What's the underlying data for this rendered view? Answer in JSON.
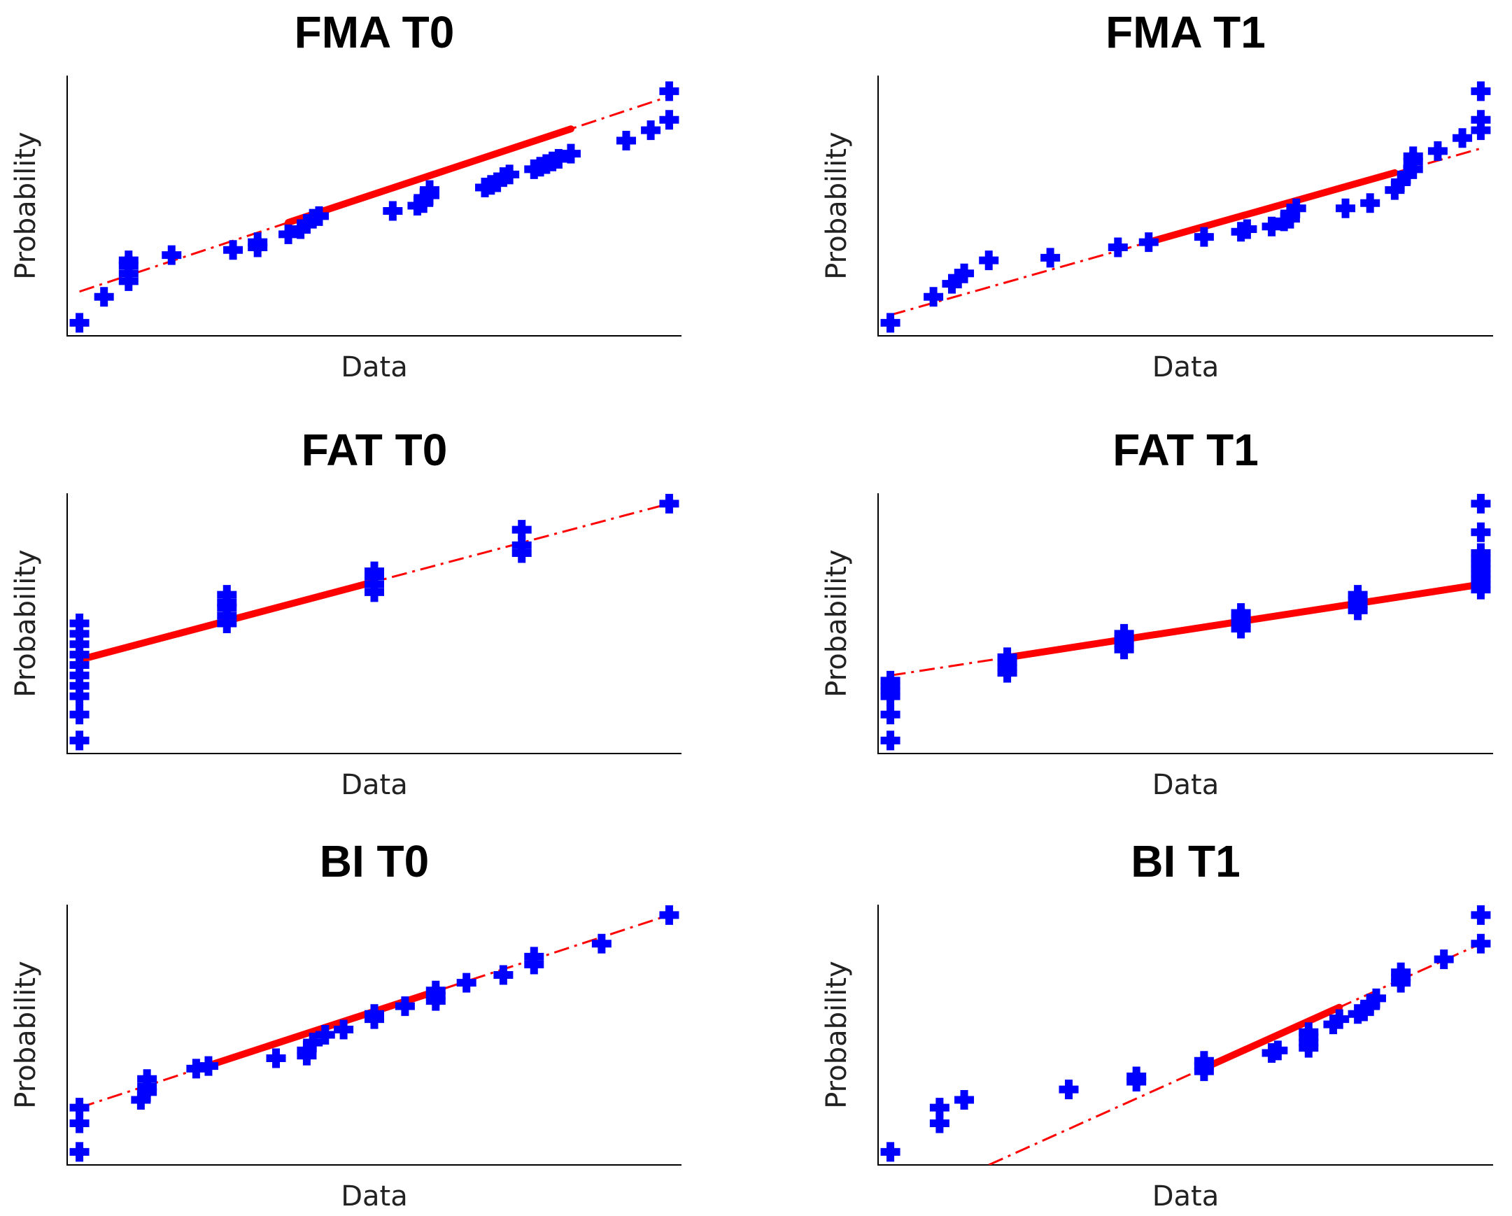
{
  "chart_data": [
    {
      "type": "scatter",
      "title": "FMA T0",
      "xlabel": "Data",
      "ylabel": "Probability",
      "xlim": [
        0,
        100
      ],
      "ylim": [
        0,
        100
      ],
      "points": [
        [
          2,
          5
        ],
        [
          6,
          15
        ],
        [
          10,
          21
        ],
        [
          10,
          24
        ],
        [
          10,
          27
        ],
        [
          10,
          29
        ],
        [
          17,
          31
        ],
        [
          27,
          33
        ],
        [
          31,
          34
        ],
        [
          31,
          36
        ],
        [
          36,
          39
        ],
        [
          38,
          41
        ],
        [
          39,
          43
        ],
        [
          40,
          45
        ],
        [
          41,
          46
        ],
        [
          53,
          48
        ],
        [
          57,
          50
        ],
        [
          58,
          51
        ],
        [
          58,
          53
        ],
        [
          59,
          54
        ],
        [
          59,
          56
        ],
        [
          68,
          57
        ],
        [
          69,
          58
        ],
        [
          70,
          59
        ],
        [
          71,
          61
        ],
        [
          72,
          62
        ],
        [
          76,
          64
        ],
        [
          77,
          65
        ],
        [
          78,
          66
        ],
        [
          79,
          67
        ],
        [
          80,
          68
        ],
        [
          82,
          70
        ],
        [
          91,
          75
        ],
        [
          95,
          79
        ],
        [
          98,
          83
        ],
        [
          98,
          94
        ]
      ],
      "fit_line": [
        [
          2,
          17
        ],
        [
          98,
          92
        ]
      ],
      "fit_solid_range": [
        36,
        82
      ]
    },
    {
      "type": "scatter",
      "title": "FMA T1",
      "xlabel": "Data",
      "ylabel": "Probability",
      "xlim": [
        0,
        100
      ],
      "ylim": [
        0,
        100
      ],
      "points": [
        [
          2,
          5
        ],
        [
          9,
          15
        ],
        [
          12,
          20
        ],
        [
          13,
          22
        ],
        [
          14,
          24
        ],
        [
          18,
          29
        ],
        [
          28,
          30
        ],
        [
          39,
          34
        ],
        [
          44,
          36
        ],
        [
          53,
          38
        ],
        [
          59,
          40
        ],
        [
          60,
          41
        ],
        [
          64,
          42
        ],
        [
          66,
          44
        ],
        [
          67,
          45
        ],
        [
          67,
          47
        ],
        [
          68,
          49
        ],
        [
          76,
          49
        ],
        [
          80,
          51
        ],
        [
          84,
          56
        ],
        [
          85,
          59
        ],
        [
          86,
          62
        ],
        [
          87,
          64
        ],
        [
          87,
          67
        ],
        [
          87,
          69
        ],
        [
          91,
          71
        ],
        [
          95,
          76
        ],
        [
          98,
          79
        ],
        [
          98,
          83
        ],
        [
          98,
          94
        ]
      ],
      "fit_line": [
        [
          2,
          8
        ],
        [
          98,
          72
        ]
      ],
      "fit_solid_range": [
        44,
        84
      ]
    },
    {
      "type": "scatter",
      "title": "FAT T0",
      "xlabel": "Data",
      "ylabel": "Probability",
      "xlim": [
        0,
        100
      ],
      "ylim": [
        0,
        100
      ],
      "points": [
        [
          2,
          5
        ],
        [
          2,
          15
        ],
        [
          2,
          22
        ],
        [
          2,
          26
        ],
        [
          2,
          30
        ],
        [
          2,
          34
        ],
        [
          2,
          38
        ],
        [
          2,
          42
        ],
        [
          2,
          46
        ],
        [
          2,
          50
        ],
        [
          26,
          50
        ],
        [
          26,
          53
        ],
        [
          26,
          56
        ],
        [
          26,
          58
        ],
        [
          26,
          61
        ],
        [
          50,
          62
        ],
        [
          50,
          65
        ],
        [
          50,
          68
        ],
        [
          50,
          70
        ],
        [
          74,
          77
        ],
        [
          74,
          80
        ],
        [
          74,
          86
        ],
        [
          98,
          96
        ]
      ],
      "fit_line": [
        [
          2,
          36
        ],
        [
          98,
          96
        ]
      ],
      "fit_solid_range": [
        2,
        50
      ]
    },
    {
      "type": "scatter",
      "title": "FAT T1",
      "xlabel": "Data",
      "ylabel": "Probability",
      "xlim": [
        0,
        100
      ],
      "ylim": [
        0,
        100
      ],
      "points": [
        [
          2,
          5
        ],
        [
          2,
          15
        ],
        [
          2,
          22
        ],
        [
          2,
          24
        ],
        [
          2,
          26
        ],
        [
          2,
          28
        ],
        [
          21,
          31
        ],
        [
          21,
          33
        ],
        [
          21,
          35
        ],
        [
          21,
          37
        ],
        [
          40,
          40
        ],
        [
          40,
          42
        ],
        [
          40,
          44
        ],
        [
          40,
          46
        ],
        [
          59,
          48
        ],
        [
          59,
          50
        ],
        [
          59,
          52
        ],
        [
          59,
          54
        ],
        [
          78,
          55
        ],
        [
          78,
          57
        ],
        [
          78,
          59
        ],
        [
          78,
          61
        ],
        [
          98,
          63
        ],
        [
          98,
          65
        ],
        [
          98,
          67
        ],
        [
          98,
          69
        ],
        [
          98,
          71
        ],
        [
          98,
          73
        ],
        [
          98,
          75
        ],
        [
          98,
          77
        ],
        [
          98,
          85
        ],
        [
          98,
          96
        ]
      ],
      "fit_line": [
        [
          2,
          30
        ],
        [
          98,
          65
        ]
      ],
      "fit_solid_range": [
        21,
        98
      ]
    },
    {
      "type": "scatter",
      "title": "BI T0",
      "xlabel": "Data",
      "ylabel": "Probability",
      "xlim": [
        0,
        100
      ],
      "ylim": [
        0,
        100
      ],
      "points": [
        [
          2,
          5
        ],
        [
          2,
          16
        ],
        [
          2,
          22
        ],
        [
          12,
          25
        ],
        [
          13,
          28
        ],
        [
          13,
          30
        ],
        [
          13,
          33
        ],
        [
          21,
          37
        ],
        [
          23,
          38
        ],
        [
          34,
          41
        ],
        [
          39,
          42
        ],
        [
          39,
          44
        ],
        [
          40,
          47
        ],
        [
          42,
          50
        ],
        [
          45,
          52
        ],
        [
          50,
          56
        ],
        [
          50,
          58
        ],
        [
          55,
          61
        ],
        [
          60,
          63
        ],
        [
          60,
          65
        ],
        [
          60,
          67
        ],
        [
          65,
          70
        ],
        [
          71,
          73
        ],
        [
          76,
          77
        ],
        [
          76,
          80
        ],
        [
          87,
          85
        ],
        [
          98,
          96
        ]
      ],
      "fit_line": [
        [
          2,
          22
        ],
        [
          98,
          96
        ]
      ],
      "fit_solid_range": [
        23,
        60
      ]
    },
    {
      "type": "scatter",
      "title": "BI T1",
      "xlabel": "Data",
      "ylabel": "Probability",
      "xlim": [
        0,
        100
      ],
      "ylim": [
        0,
        100
      ],
      "points": [
        [
          2,
          5
        ],
        [
          10,
          16
        ],
        [
          10,
          22
        ],
        [
          14,
          25
        ],
        [
          31,
          29
        ],
        [
          42,
          32
        ],
        [
          42,
          34
        ],
        [
          53,
          36
        ],
        [
          53,
          38
        ],
        [
          53,
          40
        ],
        [
          64,
          43
        ],
        [
          65,
          44
        ],
        [
          70,
          45
        ],
        [
          70,
          47
        ],
        [
          70,
          49
        ],
        [
          70,
          51
        ],
        [
          74,
          54
        ],
        [
          75,
          56
        ],
        [
          78,
          58
        ],
        [
          79,
          59
        ],
        [
          80,
          61
        ],
        [
          80,
          62
        ],
        [
          81,
          64
        ],
        [
          85,
          70
        ],
        [
          85,
          72
        ],
        [
          85,
          74
        ],
        [
          92,
          79
        ],
        [
          98,
          85
        ],
        [
          98,
          96
        ]
      ],
      "fit_line": [
        [
          18,
          0
        ],
        [
          98,
          85
        ]
      ],
      "fit_solid_range": [
        53,
        75
      ]
    }
  ]
}
